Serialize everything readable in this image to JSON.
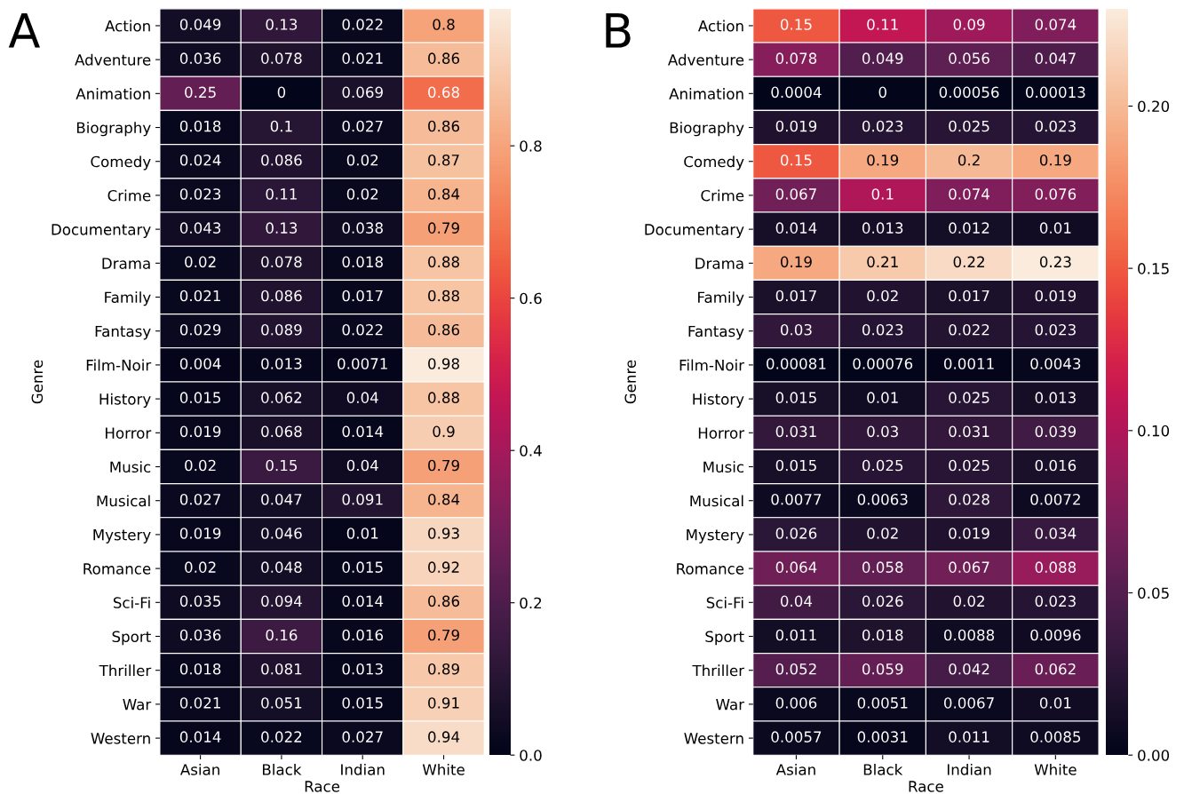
{
  "chart_data": [
    {
      "type": "heatmap",
      "title": "A",
      "xlabel": "Race",
      "ylabel": "Genre",
      "data_labels": true,
      "categories": [
        "Asian",
        "Black",
        "Indian",
        "White"
      ],
      "y_categories": [
        "Action",
        "Adventure",
        "Animation",
        "Biography",
        "Comedy",
        "Crime",
        "Documentary",
        "Drama",
        "Family",
        "Fantasy",
        "Film-Noir",
        "History",
        "Horror",
        "Music",
        "Musical",
        "Mystery",
        "Romance",
        "Sci-Fi",
        "Sport",
        "Thriller",
        "War",
        "Western"
      ],
      "cells": [
        [
          0.049,
          0.13,
          0.022,
          0.8
        ],
        [
          0.036,
          0.078,
          0.021,
          0.86
        ],
        [
          0.25,
          0,
          0.069,
          0.68
        ],
        [
          0.018,
          0.1,
          0.027,
          0.86
        ],
        [
          0.024,
          0.086,
          0.02,
          0.87
        ],
        [
          0.023,
          0.11,
          0.02,
          0.84
        ],
        [
          0.043,
          0.13,
          0.038,
          0.79
        ],
        [
          0.02,
          0.078,
          0.018,
          0.88
        ],
        [
          0.021,
          0.086,
          0.017,
          0.88
        ],
        [
          0.029,
          0.089,
          0.022,
          0.86
        ],
        [
          0.004,
          0.013,
          0.0071,
          0.98
        ],
        [
          0.015,
          0.062,
          0.04,
          0.88
        ],
        [
          0.019,
          0.068,
          0.014,
          0.9
        ],
        [
          0.02,
          0.15,
          0.04,
          0.79
        ],
        [
          0.027,
          0.047,
          0.091,
          0.84
        ],
        [
          0.019,
          0.046,
          0.01,
          0.93
        ],
        [
          0.02,
          0.048,
          0.015,
          0.92
        ],
        [
          0.035,
          0.094,
          0.014,
          0.86
        ],
        [
          0.036,
          0.16,
          0.016,
          0.79
        ],
        [
          0.018,
          0.081,
          0.013,
          0.89
        ],
        [
          0.021,
          0.051,
          0.015,
          0.91
        ],
        [
          0.014,
          0.022,
          0.027,
          0.94
        ]
      ],
      "clim": [
        0,
        0.98
      ],
      "cticks": [
        {
          "value": 0,
          "label": "0.0"
        },
        {
          "value": 0.2,
          "label": "0.2"
        },
        {
          "value": 0.4,
          "label": "0.4"
        },
        {
          "value": 0.6,
          "label": "0.6"
        },
        {
          "value": 0.8,
          "label": "0.8"
        }
      ]
    },
    {
      "type": "heatmap",
      "title": "B",
      "xlabel": "Race",
      "ylabel": "Genre",
      "data_labels": true,
      "categories": [
        "Asian",
        "Black",
        "Indian",
        "White"
      ],
      "y_categories": [
        "Action",
        "Adventure",
        "Animation",
        "Biography",
        "Comedy",
        "Crime",
        "Documentary",
        "Drama",
        "Family",
        "Fantasy",
        "Film-Noir",
        "History",
        "Horror",
        "Music",
        "Musical",
        "Mystery",
        "Romance",
        "Sci-Fi",
        "Sport",
        "Thriller",
        "War",
        "Western"
      ],
      "cells": [
        [
          0.15,
          0.11,
          0.09,
          0.074
        ],
        [
          0.078,
          0.049,
          0.056,
          0.047
        ],
        [
          0.0004,
          0,
          0.00056,
          0.00013
        ],
        [
          0.019,
          0.023,
          0.025,
          0.023
        ],
        [
          0.15,
          0.19,
          0.2,
          0.19
        ],
        [
          0.067,
          0.1,
          0.074,
          0.076
        ],
        [
          0.014,
          0.013,
          0.012,
          0.01
        ],
        [
          0.19,
          0.21,
          0.22,
          0.23
        ],
        [
          0.017,
          0.02,
          0.017,
          0.019
        ],
        [
          0.03,
          0.023,
          0.022,
          0.023
        ],
        [
          0.00081,
          0.00076,
          0.0011,
          0.0043
        ],
        [
          0.015,
          0.01,
          0.025,
          0.013
        ],
        [
          0.031,
          0.03,
          0.031,
          0.039
        ],
        [
          0.015,
          0.025,
          0.025,
          0.016
        ],
        [
          0.0077,
          0.0063,
          0.028,
          0.0072
        ],
        [
          0.026,
          0.02,
          0.019,
          0.034
        ],
        [
          0.064,
          0.058,
          0.067,
          0.088
        ],
        [
          0.04,
          0.026,
          0.02,
          0.023
        ],
        [
          0.011,
          0.018,
          0.0088,
          0.0096
        ],
        [
          0.052,
          0.059,
          0.042,
          0.062
        ],
        [
          0.006,
          0.0051,
          0.0067,
          0.01
        ],
        [
          0.0057,
          0.0031,
          0.011,
          0.0085
        ]
      ],
      "clim": [
        0,
        0.23
      ],
      "cticks": [
        {
          "value": 0,
          "label": "0.00"
        },
        {
          "value": 0.05,
          "label": "0.05"
        },
        {
          "value": 0.1,
          "label": "0.10"
        },
        {
          "value": 0.15,
          "label": "0.15"
        },
        {
          "value": 0.2,
          "label": "0.20"
        }
      ]
    }
  ]
}
